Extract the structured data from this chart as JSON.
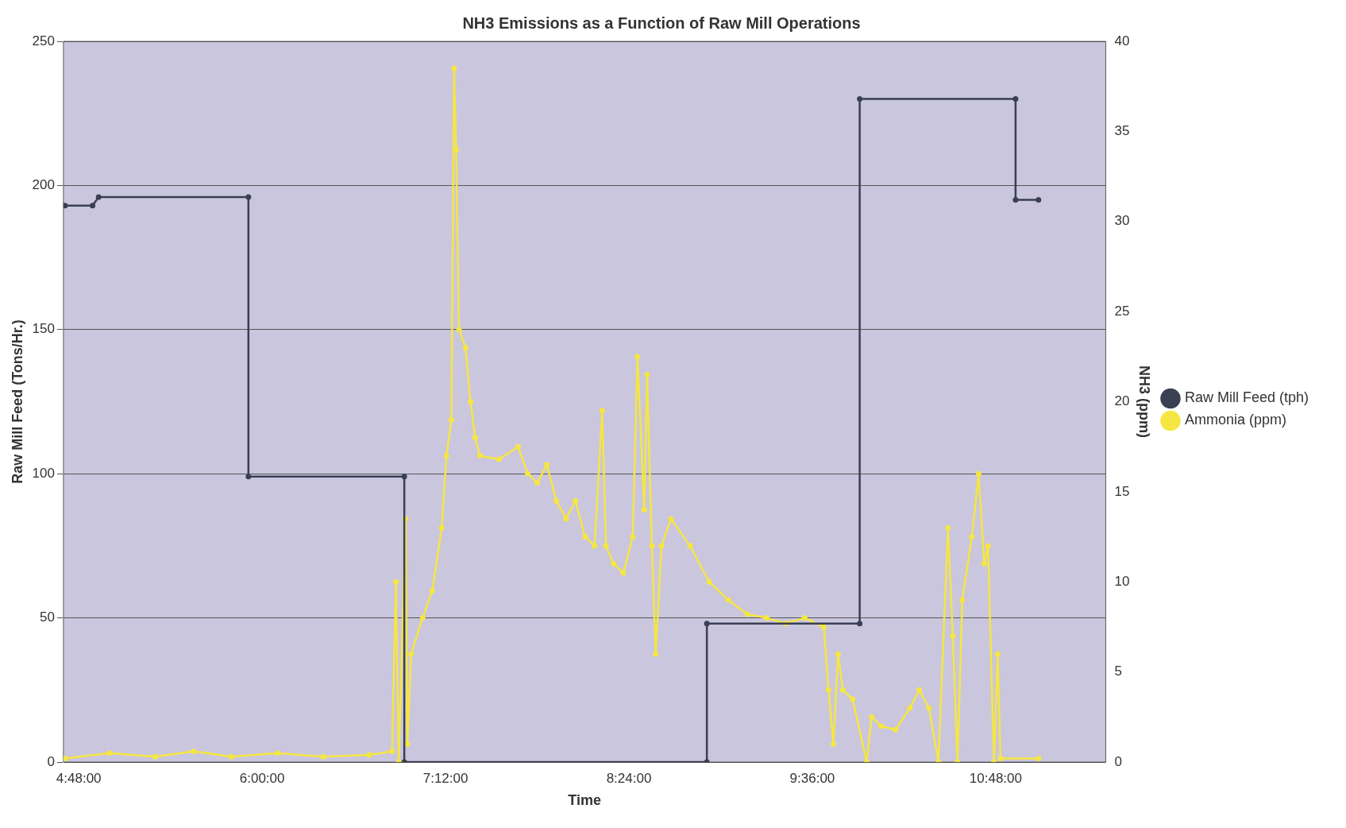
{
  "chart_data": {
    "type": "line",
    "title": "NH3 Emissions as a Function of Raw Mill Operations",
    "xlabel": "Time",
    "ylabel": "Raw Mill Feed (Tons/Hr.)",
    "y2label": "NH3 (ppm)",
    "xlim": [
      4.7,
      11.52
    ],
    "xticks": [
      {
        "value": 4.8,
        "label": "4:48:00"
      },
      {
        "value": 6,
        "label": "6:00:00"
      },
      {
        "value": 7.2,
        "label": "7:12:00"
      },
      {
        "value": 8.4,
        "label": "8:24:00"
      },
      {
        "value": 9.6,
        "label": "9:36:00"
      },
      {
        "value": 10.8,
        "label": "10:48:00"
      }
    ],
    "ylim": [
      0,
      250
    ],
    "yticks": [
      0,
      50,
      100,
      150,
      200,
      250
    ],
    "y2lim": [
      0,
      40
    ],
    "y2ticks": [
      0,
      5,
      10,
      15,
      20,
      25,
      30,
      35,
      40
    ],
    "grid": "y",
    "legend": "right",
    "marker": "circle",
    "line_style": "solid",
    "series": [
      {
        "name": "Raw Mill Feed (tph)",
        "color": "#3a3f52",
        "x": [
          4.71,
          4.89,
          4.93,
          5.91,
          5.91,
          6.93,
          6.93,
          8.91,
          8.91,
          9.91,
          9.91,
          10.93,
          10.93,
          11.08
        ],
        "values": [
          193,
          193,
          196,
          196,
          99,
          99,
          0,
          0,
          48,
          48,
          230,
          230,
          195,
          195
        ]
      },
      {
        "name": "Ammonia (ppm)",
        "color": "#f5e642",
        "axis": "y2",
        "x": [
          4.71,
          5.0,
          5.3,
          5.55,
          5.8,
          6.1,
          6.4,
          6.7,
          6.85,
          6.875,
          6.894,
          6.938,
          6.95,
          6.975,
          7.05,
          7.113,
          7.175,
          7.206,
          7.238,
          7.256,
          7.269,
          7.288,
          7.331,
          7.363,
          7.394,
          7.425,
          7.55,
          7.675,
          7.738,
          7.8,
          7.863,
          7.925,
          7.988,
          8.05,
          8.113,
          8.175,
          8.225,
          8.25,
          8.3,
          8.363,
          8.425,
          8.456,
          8.5,
          8.519,
          8.55,
          8.575,
          8.613,
          8.675,
          8.8,
          8.925,
          9.05,
          9.175,
          9.3,
          9.425,
          9.55,
          9.675,
          9.706,
          9.738,
          9.769,
          9.8,
          9.863,
          9.956,
          9.988,
          10.05,
          10.144,
          10.238,
          10.3,
          10.363,
          10.425,
          10.488,
          10.519,
          10.55,
          10.581,
          10.644,
          10.688,
          10.725,
          10.75,
          10.788,
          10.813,
          10.831,
          11.081
        ],
        "values": [
          0.2,
          0.5,
          0.3,
          0.6,
          0.3,
          0.5,
          0.3,
          0.4,
          0.6,
          10,
          0,
          13.5,
          1,
          6,
          8,
          9.5,
          13,
          17,
          19,
          38.5,
          34,
          24,
          23,
          20,
          18,
          17,
          16.8,
          17.5,
          16,
          15.5,
          16.5,
          14.5,
          13.5,
          14.5,
          12.5,
          12,
          19.5,
          12,
          11,
          10.5,
          12.5,
          22.5,
          14,
          21.5,
          12,
          6,
          12,
          13.5,
          12,
          10,
          9,
          8.2,
          8,
          7.7,
          8,
          7.5,
          4,
          1,
          6,
          4,
          3.5,
          0,
          2.5,
          2,
          1.8,
          3,
          4,
          3,
          0,
          13,
          7,
          0,
          9,
          12.5,
          16,
          11,
          12,
          0,
          6,
          0.2,
          0.2
        ]
      }
    ]
  }
}
